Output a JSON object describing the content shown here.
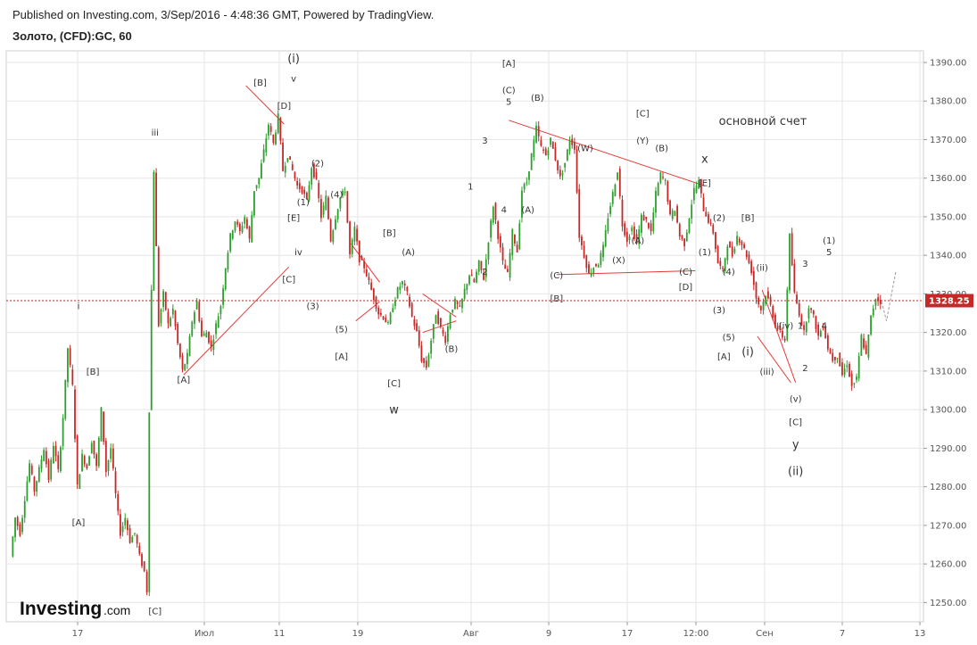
{
  "header": {
    "published": "Published on Investing.com, 3/Sep/2016 - 4:48:36 GMT, Powered by TradingView.",
    "instrument": "Золото, (CFD):GC, 60"
  },
  "brand": {
    "name": "Investing",
    "domain": ".com"
  },
  "colors": {
    "up": "#2e9e2e",
    "down": "#c62828",
    "trendline": "#e53935",
    "price_line": "#c62828",
    "grid": "#e6e6e6",
    "axis": "#999999"
  },
  "chart_data": {
    "type": "candlestick",
    "ylim": [
      1245,
      1393
    ],
    "yticks": [
      1250,
      1260,
      1270,
      1280,
      1290,
      1300,
      1310,
      1320,
      1330,
      1340,
      1350,
      1360,
      1370,
      1380,
      1390
    ],
    "ytick_labels": [
      "1250.00",
      "1260.00",
      "1270.00",
      "1280.00",
      "1290.00",
      "1300.00",
      "1310.00",
      "1320.00",
      "1330.00",
      "1340.00",
      "1350.00",
      "1360.00",
      "1370.00",
      "1380.00",
      "1390.00"
    ],
    "xticks": [
      "17",
      "Июл",
      "11",
      "19",
      "Авг",
      "9",
      "17",
      "12:00",
      "Сен",
      "7",
      "13"
    ],
    "current_price": 1328.25,
    "current_price_label": "1328.25",
    "price_path": [
      [
        0,
        1262
      ],
      [
        1,
        1272
      ],
      [
        2,
        1268
      ],
      [
        4,
        1286
      ],
      [
        5,
        1279
      ],
      [
        7,
        1290
      ],
      [
        8,
        1282
      ],
      [
        9,
        1291
      ],
      [
        10,
        1284
      ],
      [
        11,
        1298
      ],
      [
        12,
        1316
      ],
      [
        13,
        1306
      ],
      [
        14,
        1280
      ],
      [
        15,
        1288
      ],
      [
        16,
        1285
      ],
      [
        17,
        1292
      ],
      [
        18,
        1285
      ],
      [
        19,
        1300
      ],
      [
        20,
        1284
      ],
      [
        21,
        1290
      ],
      [
        22,
        1278
      ],
      [
        23,
        1268
      ],
      [
        24,
        1272
      ],
      [
        25,
        1266
      ],
      [
        26,
        1268
      ],
      [
        27,
        1262
      ],
      [
        28,
        1258
      ],
      [
        28.6,
        1253
      ],
      [
        29,
        1300
      ],
      [
        30,
        1362
      ],
      [
        31,
        1322
      ],
      [
        32,
        1330
      ],
      [
        33,
        1322
      ],
      [
        34,
        1326
      ],
      [
        35,
        1317
      ],
      [
        36,
        1310
      ],
      [
        37,
        1314
      ],
      [
        38,
        1323
      ],
      [
        39,
        1328
      ],
      [
        40,
        1319
      ],
      [
        41,
        1320
      ],
      [
        42,
        1316
      ],
      [
        43,
        1322
      ],
      [
        44,
        1327
      ],
      [
        45,
        1337
      ],
      [
        46,
        1345
      ],
      [
        47,
        1349
      ],
      [
        48,
        1346
      ],
      [
        49,
        1350
      ],
      [
        50,
        1344
      ],
      [
        51,
        1357
      ],
      [
        52,
        1360
      ],
      [
        53,
        1367
      ],
      [
        54,
        1374
      ],
      [
        55,
        1369
      ],
      [
        56,
        1376
      ],
      [
        57,
        1362
      ],
      [
        58,
        1366
      ],
      [
        59,
        1362
      ],
      [
        60,
        1358
      ],
      [
        61,
        1357
      ],
      [
        62,
        1354
      ],
      [
        63,
        1363
      ],
      [
        64,
        1359
      ],
      [
        65,
        1350
      ],
      [
        66,
        1355
      ],
      [
        67,
        1344
      ],
      [
        68,
        1350
      ],
      [
        69,
        1355
      ],
      [
        70,
        1357
      ],
      [
        71,
        1340
      ],
      [
        72,
        1347
      ],
      [
        73,
        1339
      ],
      [
        74,
        1337
      ],
      [
        75,
        1333
      ],
      [
        76,
        1329
      ],
      [
        77,
        1325
      ],
      [
        78,
        1324
      ],
      [
        79,
        1322
      ],
      [
        80,
        1327
      ],
      [
        81,
        1331
      ],
      [
        82,
        1333
      ],
      [
        83,
        1330
      ],
      [
        84,
        1324
      ],
      [
        85,
        1320
      ],
      [
        86,
        1313
      ],
      [
        87,
        1311
      ],
      [
        88,
        1318
      ],
      [
        89,
        1325
      ],
      [
        90,
        1321
      ],
      [
        91,
        1318
      ],
      [
        92,
        1325
      ],
      [
        93,
        1328
      ],
      [
        94,
        1326
      ],
      [
        95,
        1331
      ],
      [
        96,
        1335
      ],
      [
        97,
        1333
      ],
      [
        98,
        1338
      ],
      [
        99,
        1334
      ],
      [
        100,
        1344
      ],
      [
        101,
        1353
      ],
      [
        102,
        1345
      ],
      [
        103,
        1338
      ],
      [
        104,
        1335
      ],
      [
        105,
        1346
      ],
      [
        106,
        1341
      ],
      [
        107,
        1357
      ],
      [
        108,
        1359
      ],
      [
        109,
        1366
      ],
      [
        110,
        1373
      ],
      [
        111,
        1368
      ],
      [
        112,
        1366
      ],
      [
        113,
        1370
      ],
      [
        114,
        1365
      ],
      [
        115,
        1360
      ],
      [
        116,
        1364
      ],
      [
        117,
        1370
      ],
      [
        118,
        1368
      ],
      [
        119,
        1345
      ],
      [
        120,
        1340
      ],
      [
        121,
        1335
      ],
      [
        122,
        1337
      ],
      [
        123,
        1338
      ],
      [
        124,
        1342
      ],
      [
        125,
        1350
      ],
      [
        126,
        1356
      ],
      [
        127,
        1362
      ],
      [
        128,
        1348
      ],
      [
        129,
        1344
      ],
      [
        130,
        1347
      ],
      [
        131,
        1343
      ],
      [
        132,
        1350
      ],
      [
        133,
        1349
      ],
      [
        134,
        1346
      ],
      [
        135,
        1356
      ],
      [
        136,
        1361
      ],
      [
        137,
        1359
      ],
      [
        138,
        1350
      ],
      [
        139,
        1352
      ],
      [
        140,
        1345
      ],
      [
        141,
        1343
      ],
      [
        142,
        1350
      ],
      [
        143,
        1357
      ],
      [
        144,
        1359
      ],
      [
        145,
        1352
      ],
      [
        146,
        1349
      ],
      [
        147,
        1346
      ],
      [
        148,
        1338
      ],
      [
        149,
        1336
      ],
      [
        150,
        1343
      ],
      [
        151,
        1340
      ],
      [
        152,
        1345
      ],
      [
        153,
        1343
      ],
      [
        154,
        1340
      ],
      [
        155,
        1336
      ],
      [
        156,
        1329
      ],
      [
        157,
        1326
      ],
      [
        158,
        1330
      ],
      [
        159,
        1327
      ],
      [
        160,
        1322
      ],
      [
        161,
        1320
      ],
      [
        162,
        1318
      ],
      [
        163,
        1345
      ],
      [
        164,
        1330
      ],
      [
        165,
        1325
      ],
      [
        166,
        1320
      ],
      [
        167,
        1327
      ],
      [
        168,
        1324
      ],
      [
        169,
        1319
      ],
      [
        170,
        1322
      ],
      [
        171,
        1316
      ],
      [
        172,
        1313
      ],
      [
        173,
        1314
      ],
      [
        174,
        1309
      ],
      [
        175,
        1312
      ],
      [
        176,
        1306
      ],
      [
        177,
        1308
      ],
      [
        178,
        1319
      ],
      [
        179,
        1314
      ],
      [
        180,
        1324
      ],
      [
        181,
        1329
      ],
      [
        182,
        1328
      ]
    ],
    "projection_path": [
      [
        182,
        1328
      ],
      [
        183,
        1323
      ],
      [
        185,
        1336
      ]
    ],
    "annotations": [
      {
        "text": "i",
        "x": 14,
        "y": 1326
      },
      {
        "text": "[B]",
        "x": 17,
        "y": 1309
      },
      {
        "text": "[A]",
        "x": 14,
        "y": 1270
      },
      {
        "text": "[C]",
        "x": 30,
        "y": 1247
      },
      {
        "text": "iii",
        "x": 30,
        "y": 1371
      },
      {
        "text": "[A]",
        "x": 36,
        "y": 1307
      },
      {
        "text": "[B]",
        "x": 52,
        "y": 1384
      },
      {
        "text": "(i)",
        "x": 59,
        "y": 1390
      },
      {
        "text": "v",
        "x": 59,
        "y": 1385
      },
      {
        "text": "[D]",
        "x": 57,
        "y": 1378
      },
      {
        "text": "(2)",
        "x": 64,
        "y": 1363
      },
      {
        "text": "(1)",
        "x": 61,
        "y": 1353
      },
      {
        "text": "(4)",
        "x": 68,
        "y": 1355
      },
      {
        "text": "[E]",
        "x": 59,
        "y": 1349
      },
      {
        "text": "iv",
        "x": 60,
        "y": 1340
      },
      {
        "text": "[C]",
        "x": 58,
        "y": 1333
      },
      {
        "text": "(3)",
        "x": 63,
        "y": 1326
      },
      {
        "text": "[B]",
        "x": 79,
        "y": 1345
      },
      {
        "text": "(A)",
        "x": 83,
        "y": 1340
      },
      {
        "text": "(5)",
        "x": 69,
        "y": 1320
      },
      {
        "text": "[A]",
        "x": 69,
        "y": 1313
      },
      {
        "text": "[C]",
        "x": 80,
        "y": 1306
      },
      {
        "text": "w",
        "x": 80,
        "y": 1299
      },
      {
        "text": "(B)",
        "x": 92,
        "y": 1315
      },
      {
        "text": "[A]",
        "x": 104,
        "y": 1389
      },
      {
        "text": "(C)",
        "x": 104,
        "y": 1382
      },
      {
        "text": "5",
        "x": 104,
        "y": 1379
      },
      {
        "text": "(B)",
        "x": 110,
        "y": 1380
      },
      {
        "text": "3",
        "x": 99,
        "y": 1369
      },
      {
        "text": "1",
        "x": 96,
        "y": 1357
      },
      {
        "text": "4",
        "x": 103,
        "y": 1351
      },
      {
        "text": "(A)",
        "x": 108,
        "y": 1351
      },
      {
        "text": "2",
        "x": 99,
        "y": 1335
      },
      {
        "text": "[C]",
        "x": 132,
        "y": 1376
      },
      {
        "text": "(Y)",
        "x": 132,
        "y": 1369
      },
      {
        "text": "(W)",
        "x": 120,
        "y": 1367
      },
      {
        "text": "(B)",
        "x": 136,
        "y": 1367
      },
      {
        "text": "x",
        "x": 145,
        "y": 1364
      },
      {
        "text": "[E]",
        "x": 145,
        "y": 1358
      },
      {
        "text": "(2)",
        "x": 148,
        "y": 1349
      },
      {
        "text": "(A)",
        "x": 131,
        "y": 1343
      },
      {
        "text": "(X)",
        "x": 127,
        "y": 1338
      },
      {
        "text": "(1)",
        "x": 145,
        "y": 1340
      },
      {
        "text": "[B]",
        "x": 154,
        "y": 1349
      },
      {
        "text": "(C)",
        "x": 114,
        "y": 1334
      },
      {
        "text": "(C)",
        "x": 141,
        "y": 1335
      },
      {
        "text": "[D]",
        "x": 141,
        "y": 1331
      },
      {
        "text": "[B]",
        "x": 114,
        "y": 1328
      },
      {
        "text": "(4)",
        "x": 150,
        "y": 1335
      },
      {
        "text": "(3)",
        "x": 148,
        "y": 1325
      },
      {
        "text": "(ii)",
        "x": 157,
        "y": 1336
      },
      {
        "text": "(5)",
        "x": 150,
        "y": 1318
      },
      {
        "text": "[A]",
        "x": 149,
        "y": 1313
      },
      {
        "text": "(i)",
        "x": 154,
        "y": 1314
      },
      {
        "text": "(iv)",
        "x": 162,
        "y": 1321
      },
      {
        "text": "(iii)",
        "x": 158,
        "y": 1309
      },
      {
        "text": "(v)",
        "x": 164,
        "y": 1302
      },
      {
        "text": "[C]",
        "x": 164,
        "y": 1296
      },
      {
        "text": "y",
        "x": 164,
        "y": 1290
      },
      {
        "text": "(ii)",
        "x": 164,
        "y": 1283
      },
      {
        "text": "1",
        "x": 165,
        "y": 1321
      },
      {
        "text": "2",
        "x": 166,
        "y": 1310
      },
      {
        "text": "3",
        "x": 166,
        "y": 1337
      },
      {
        "text": "4",
        "x": 170,
        "y": 1321
      },
      {
        "text": "(1)",
        "x": 171,
        "y": 1343
      },
      {
        "text": "5",
        "x": 171,
        "y": 1340
      }
    ],
    "note": "основной счет"
  }
}
